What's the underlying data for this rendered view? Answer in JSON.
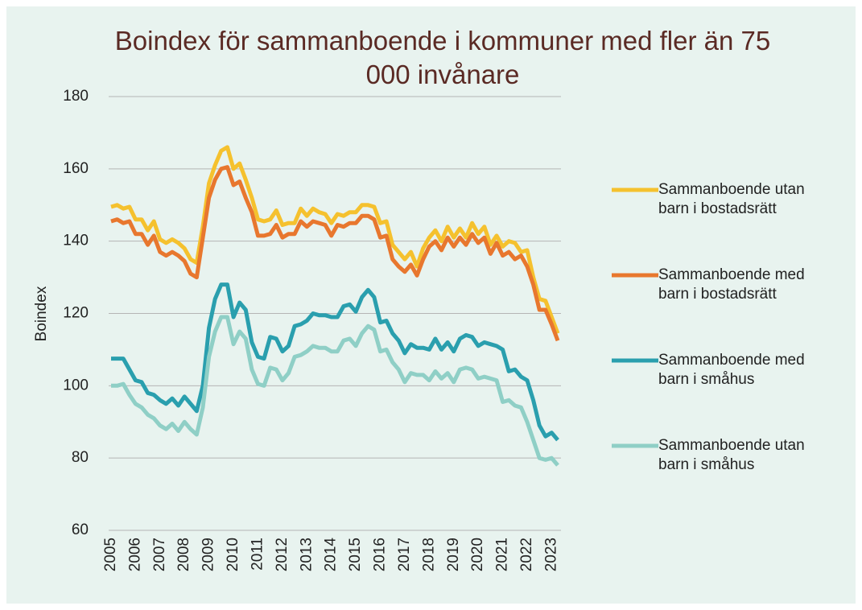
{
  "chart_data": {
    "type": "line",
    "title": "Boindex för sammanboende i kommuner med fler än 75 000 invånare",
    "y_label": "Boindex",
    "categories": [
      "2005",
      null,
      null,
      null,
      "2006",
      null,
      null,
      null,
      "2007",
      null,
      null,
      null,
      "2008",
      null,
      null,
      null,
      "2009",
      null,
      null,
      null,
      "2010",
      null,
      null,
      null,
      "2011",
      null,
      null,
      null,
      "2012",
      null,
      null,
      null,
      "2013",
      null,
      null,
      null,
      "2014",
      null,
      null,
      null,
      "2015",
      null,
      null,
      null,
      "2016",
      null,
      null,
      null,
      "2017",
      null,
      null,
      null,
      "2018",
      null,
      null,
      null,
      "2019",
      null,
      null,
      null,
      "2020",
      null,
      null,
      null,
      "2021",
      null,
      null,
      null,
      "2022",
      null,
      null,
      null,
      "2023",
      null
    ],
    "ylim": [
      60,
      180
    ],
    "yticks": [
      60,
      80,
      100,
      120,
      140,
      160,
      180
    ],
    "grid": true,
    "series": [
      {
        "name": "Sammanboende utan barn i bostadsrätt",
        "color": "#f5c12e",
        "values": [
          149.5,
          150,
          149,
          149.5,
          146,
          146,
          143,
          145.5,
          140.5,
          139.5,
          140.5,
          139.5,
          138,
          135,
          134,
          144,
          156,
          161,
          165,
          166,
          160,
          161.5,
          157,
          152,
          146,
          145.5,
          146,
          148.5,
          144.5,
          145,
          145,
          149,
          147,
          149,
          148,
          147.5,
          145,
          147.5,
          147,
          148,
          148,
          150,
          150,
          149.5,
          145,
          145.5,
          139,
          137,
          135,
          137,
          133,
          138,
          141,
          143,
          140,
          144,
          141,
          143.5,
          141,
          145,
          142,
          144,
          139,
          141.5,
          138.5,
          140,
          139.5,
          137,
          137.5,
          130,
          124,
          123.5,
          119,
          114.5
        ]
      },
      {
        "name": "Sammanboende med barn i bostadsrätt",
        "color": "#e8772e",
        "values": [
          145.5,
          146,
          145,
          145.5,
          142,
          142,
          139,
          141.5,
          137,
          136,
          137,
          136,
          134.5,
          131,
          130,
          141,
          152,
          157,
          160,
          160.5,
          155.5,
          156.5,
          152,
          148,
          141.5,
          141.5,
          142,
          144.5,
          141,
          142,
          142,
          145.5,
          144,
          145.5,
          145,
          144.5,
          141.5,
          144.5,
          144,
          145,
          145,
          147,
          147,
          146,
          141,
          141.5,
          135,
          133,
          131.5,
          133.5,
          130.5,
          135,
          138.5,
          140,
          137.5,
          141,
          138.5,
          141,
          139,
          142,
          139.5,
          141,
          136.5,
          139.5,
          136,
          137,
          135,
          136,
          133,
          128,
          121,
          121,
          117,
          112.5
        ]
      },
      {
        "name": "Sammanboende med barn i småhus",
        "color": "#2a9fae",
        "values": [
          107.5,
          107.5,
          107.5,
          104.5,
          101.5,
          101,
          98,
          97.5,
          96,
          95,
          96.5,
          94.5,
          97,
          95,
          93,
          100,
          116,
          124,
          128,
          128,
          119,
          123,
          121,
          112,
          108,
          107.5,
          113.5,
          113,
          109.5,
          111,
          116.5,
          117,
          118,
          120,
          119.5,
          119.5,
          119,
          119,
          122,
          122.5,
          120.5,
          124.5,
          126.5,
          124.5,
          117.5,
          118,
          114.5,
          112.5,
          109,
          111.5,
          110.5,
          110.5,
          110,
          113,
          110,
          112,
          109.5,
          113,
          114,
          113.5,
          111,
          112,
          111.5,
          111,
          110,
          104,
          104.5,
          102.5,
          101.5,
          96,
          89,
          86,
          87,
          85
        ]
      },
      {
        "name": "Sammanboende utan barn i småhus",
        "color": "#8fcfc6",
        "values": [
          100,
          100,
          100.5,
          97.5,
          95,
          94,
          92,
          91,
          89,
          88,
          89.5,
          87.5,
          90,
          88,
          86.5,
          94,
          108,
          115,
          119,
          119,
          111.5,
          115,
          113,
          104.5,
          100.5,
          100,
          105,
          104.5,
          101.5,
          103.5,
          108,
          108.5,
          109.5,
          111,
          110.5,
          110.5,
          109.5,
          109.5,
          112.5,
          113,
          111,
          114.5,
          116.5,
          115.5,
          109.5,
          110,
          106.5,
          104.5,
          101,
          103.5,
          103,
          103,
          101.5,
          104,
          102,
          103.5,
          101,
          104.5,
          105,
          104.5,
          102,
          102.5,
          102,
          101.5,
          95.5,
          96,
          94.5,
          94,
          90,
          85,
          80,
          79.5,
          80,
          78
        ]
      }
    ]
  }
}
